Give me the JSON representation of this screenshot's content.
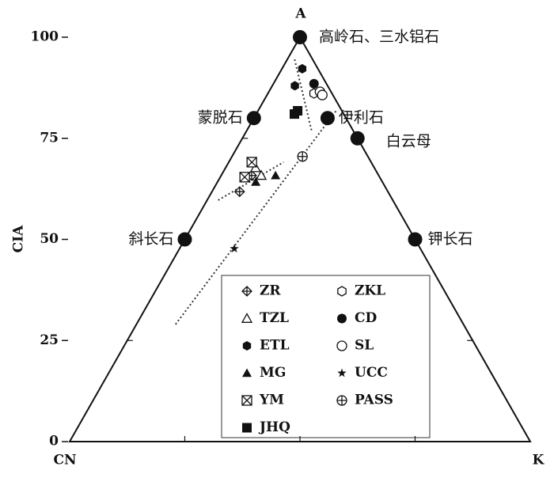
{
  "chart_data": {
    "type": "ternary",
    "vertex_labels": {
      "top": "A",
      "left": "CN",
      "right": "K"
    },
    "ylabel": "CIA",
    "ylim": [
      0,
      100
    ],
    "yticks": [
      0,
      25,
      50,
      75,
      100
    ],
    "minerals": [
      {
        "name": "高岭石、三水铝石",
        "a": 100,
        "k": 0
      },
      {
        "name": "蒙脱石",
        "a": 80,
        "k": 0
      },
      {
        "name": "伊利石",
        "a": 80,
        "k": 16
      },
      {
        "name": "白云母",
        "a": 75,
        "k": 25
      },
      {
        "name": "斜长石",
        "a": 50,
        "k": 0
      },
      {
        "name": "钾长石",
        "a": 50,
        "k": 50
      }
    ],
    "trend_lines": [
      {
        "a": [
          29,
          82
        ],
        "k": [
          8.5,
          17
        ]
      },
      {
        "a": [
          94.5,
          77
        ],
        "k": [
          1.6,
          14
        ]
      },
      {
        "a": [
          59.7,
          69.1
        ],
        "k": [
          2.4,
          11.9
        ]
      }
    ],
    "series": [
      {
        "name": "ZR",
        "marker": "diamond-cross",
        "color": "#111111",
        "a": [
          61.8,
          65.8
        ],
        "k": [
          6,
          6.6
        ]
      },
      {
        "name": "TZL",
        "marker": "triangle-open",
        "color": "#111111",
        "a": [
          67.7,
          65.8
        ],
        "k": [
          6.5,
          8.7
        ]
      },
      {
        "name": "ETL",
        "marker": "hexagon-filled",
        "color": "#111111",
        "a": [
          92.2,
          88
        ],
        "k": [
          4.4,
          4.9
        ]
      },
      {
        "name": "MG",
        "marker": "triangle-filled",
        "color": "#111111",
        "a": [
          64.2,
          65.8
        ],
        "k": [
          8.3,
          11.8
        ]
      },
      {
        "name": "YM",
        "marker": "square-x",
        "color": "#111111",
        "a": [
          65.4,
          69.1
        ],
        "k": [
          5.3,
          5
        ]
      },
      {
        "name": "JHQ",
        "marker": "square-filled",
        "color": "#111111",
        "a": [
          81,
          81.8
        ],
        "k": [
          8.3,
          8.6
        ]
      },
      {
        "name": "ZKL",
        "marker": "hexagon-open",
        "color": "#111111",
        "a": [
          86.1
        ],
        "k": [
          10
        ]
      },
      {
        "name": "CD",
        "marker": "circle-filled",
        "color": "#111111",
        "a": [
          88.5
        ],
        "k": [
          8.8
        ]
      },
      {
        "name": "SL",
        "marker": "circle-open",
        "color": "#111111",
        "a": [
          86.5,
          85.7
        ],
        "k": [
          11.1,
          12
        ]
      },
      {
        "name": "UCC",
        "marker": "star",
        "color": "#111111",
        "a": [
          47.7
        ],
        "k": [
          11.9
        ]
      },
      {
        "name": "PASS",
        "marker": "circle-plus",
        "color": "#111111",
        "a": [
          70.5
        ],
        "k": [
          15.3
        ]
      }
    ]
  }
}
